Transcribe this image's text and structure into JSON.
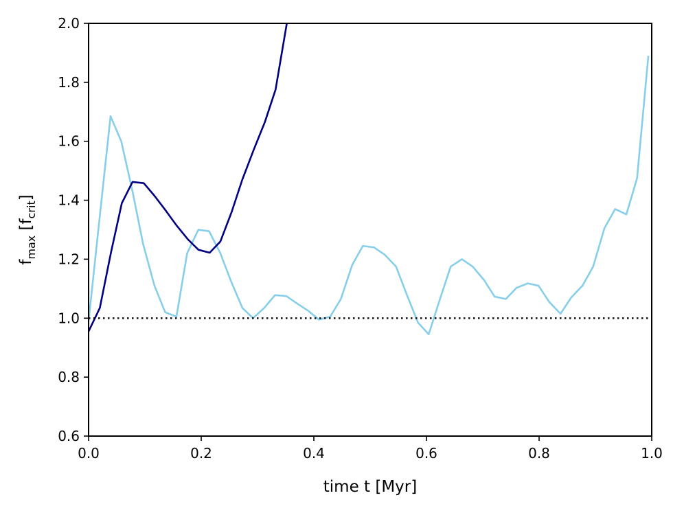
{
  "chart_data": {
    "type": "line",
    "xlabel": "time t [Myr]",
    "ylabel": {
      "base": "f",
      "sub": "max",
      "bracket_base": "f",
      "bracket_sub": "crit"
    },
    "xlim": [
      0.0,
      1.0
    ],
    "ylim": [
      0.6,
      2.0
    ],
    "x_ticks": [
      0.0,
      0.2,
      0.4,
      0.6,
      0.8,
      1.0
    ],
    "y_ticks": [
      0.6,
      0.8,
      1.0,
      1.2,
      1.4,
      1.6,
      1.8,
      2.0
    ],
    "x_tick_labels": [
      "0.0",
      "0.2",
      "0.4",
      "0.6",
      "0.8",
      "1.0"
    ],
    "y_tick_labels": [
      "0.6",
      "0.8",
      "1.0",
      "1.2",
      "1.4",
      "1.6",
      "1.8",
      "2.0"
    ],
    "grid": false,
    "reference_line": {
      "y": 1.0,
      "style": "dotted",
      "color": "#000000"
    },
    "series": [
      {
        "color": "#87ceeb",
        "x": [
          0.0,
          0.019,
          0.039,
          0.058,
          0.078,
          0.097,
          0.117,
          0.136,
          0.156,
          0.175,
          0.195,
          0.214,
          0.234,
          0.253,
          0.273,
          0.292,
          0.312,
          0.331,
          0.351,
          0.37,
          0.39,
          0.409,
          0.429,
          0.448,
          0.468,
          0.487,
          0.507,
          0.526,
          0.546,
          0.565,
          0.585,
          0.604,
          0.624,
          0.643,
          0.663,
          0.682,
          0.702,
          0.721,
          0.741,
          0.76,
          0.78,
          0.799,
          0.818,
          0.838,
          0.857,
          0.877,
          0.896,
          0.916,
          0.935,
          0.955,
          0.974,
          0.994
        ],
        "y": [
          0.99,
          1.33,
          1.685,
          1.6,
          1.43,
          1.25,
          1.11,
          1.02,
          1.005,
          1.22,
          1.3,
          1.295,
          1.22,
          1.125,
          1.035,
          1.0,
          1.035,
          1.078,
          1.075,
          1.05,
          1.025,
          0.995,
          1.005,
          1.065,
          1.18,
          1.245,
          1.24,
          1.215,
          1.175,
          1.08,
          0.985,
          0.945,
          1.065,
          1.175,
          1.2,
          1.175,
          1.13,
          1.073,
          1.065,
          1.103,
          1.118,
          1.11,
          1.055,
          1.015,
          1.07,
          1.11,
          1.175,
          1.305,
          1.37,
          1.352,
          1.475,
          1.89
        ]
      },
      {
        "color": "#000080",
        "x": [
          0.0,
          0.02,
          0.04,
          0.059,
          0.078,
          0.098,
          0.117,
          0.137,
          0.156,
          0.176,
          0.195,
          0.215,
          0.234,
          0.254,
          0.273,
          0.293,
          0.313,
          0.332,
          0.352
        ],
        "y": [
          0.955,
          1.035,
          1.225,
          1.39,
          1.462,
          1.458,
          1.415,
          1.365,
          1.315,
          1.268,
          1.232,
          1.222,
          1.26,
          1.36,
          1.47,
          1.57,
          1.665,
          1.775,
          2.0
        ]
      }
    ]
  }
}
